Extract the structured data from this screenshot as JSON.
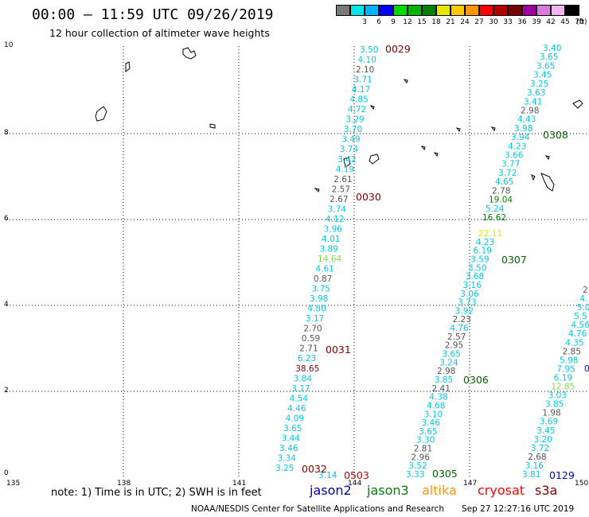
{
  "header": {
    "title": "00:00 – 11:59 UTC 09/26/2019",
    "subtitle": "12 hour collection of altimeter wave heights"
  },
  "legend": {
    "unit": "(ft)",
    "items": [
      {
        "label": "",
        "color": "#787878"
      },
      {
        "label": "3",
        "color": "#00e6e6"
      },
      {
        "label": "6",
        "color": "#00b4ff"
      },
      {
        "label": "9",
        "color": "#0000ff"
      },
      {
        "label": "12",
        "color": "#00dc00"
      },
      {
        "label": "15",
        "color": "#00b400"
      },
      {
        "label": "18",
        "color": "#008200"
      },
      {
        "label": "21",
        "color": "#e6e600"
      },
      {
        "label": "24",
        "color": "#ffc800"
      },
      {
        "label": "27",
        "color": "#ff9600"
      },
      {
        "label": "30",
        "color": "#ff0000"
      },
      {
        "label": "33",
        "color": "#b40000"
      },
      {
        "label": "36",
        "color": "#780000"
      },
      {
        "label": "39",
        "color": "#a000a0"
      },
      {
        "label": "42",
        "color": "#dc78dc"
      },
      {
        "label": "45",
        "color": "#f0b4f0"
      },
      {
        "label": "70",
        "color": "#000000"
      }
    ]
  },
  "map": {
    "y_ticks": [
      "10",
      "8",
      "6",
      "4",
      "2",
      "0"
    ],
    "x_ticks": [
      "135",
      "138",
      "141",
      "144",
      "147",
      "150"
    ],
    "colors": {
      "cyan": "#00c8e6",
      "gray": "#555555",
      "lightgreen": "#7ddc46",
      "green": "#008200",
      "yellow": "#e6e600",
      "red": "#c80000",
      "darkred": "#800000",
      "blue": "#0000c8"
    },
    "time_labels": [
      {
        "text": "0029",
        "color": "#800000"
      },
      {
        "text": "0030",
        "color": "#800000"
      },
      {
        "text": "0031",
        "color": "#800000"
      },
      {
        "text": "0032",
        "color": "#800000"
      },
      {
        "text": "0503",
        "color": "#c80000"
      },
      {
        "text": "0305",
        "color": "#006400"
      },
      {
        "text": "0306",
        "color": "#006400"
      },
      {
        "text": "0307",
        "color": "#006400"
      },
      {
        "text": "0308",
        "color": "#006400"
      },
      {
        "text": "0129",
        "color": "#0000c8"
      }
    ],
    "track1": [
      {
        "v": "3.50",
        "c": "cyan"
      },
      {
        "v": "4.10",
        "c": "cyan"
      },
      {
        "v": "2.10",
        "c": "gray"
      },
      {
        "v": "3.71",
        "c": "cyan"
      },
      {
        "v": "4.17",
        "c": "cyan"
      },
      {
        "v": "4.85",
        "c": "cyan"
      },
      {
        "v": "4.72",
        "c": "cyan"
      },
      {
        "v": "3.29",
        "c": "cyan"
      },
      {
        "v": "3.70",
        "c": "cyan"
      },
      {
        "v": "3.49",
        "c": "cyan"
      },
      {
        "v": "3.74",
        "c": "cyan"
      },
      {
        "v": "3.42",
        "c": "cyan"
      },
      {
        "v": "4.19",
        "c": "cyan"
      },
      {
        "v": "2.61",
        "c": "gray"
      },
      {
        "v": "2.57",
        "c": "gray"
      },
      {
        "v": "2.67",
        "c": "gray"
      },
      {
        "v": "3.74",
        "c": "cyan"
      },
      {
        "v": "4.12",
        "c": "cyan"
      },
      {
        "v": "3.96",
        "c": "cyan"
      },
      {
        "v": "4.01",
        "c": "cyan"
      },
      {
        "v": "3.89",
        "c": "cyan"
      },
      {
        "v": "14.64",
        "c": "lightgreen"
      },
      {
        "v": "4.61",
        "c": "cyan"
      },
      {
        "v": "0.87",
        "c": "gray"
      },
      {
        "v": "3.75",
        "c": "cyan"
      },
      {
        "v": "3.98",
        "c": "cyan"
      },
      {
        "v": "4.80",
        "c": "cyan"
      },
      {
        "v": "3.17",
        "c": "cyan"
      },
      {
        "v": "2.70",
        "c": "gray"
      },
      {
        "v": "0.59",
        "c": "gray"
      },
      {
        "v": "2.71",
        "c": "gray"
      },
      {
        "v": "6.23",
        "c": "cyan"
      },
      {
        "v": "38.65",
        "c": "darkred"
      },
      {
        "v": "3.84",
        "c": "cyan"
      },
      {
        "v": "3.17",
        "c": "cyan"
      },
      {
        "v": "4.54",
        "c": "cyan"
      },
      {
        "v": "4.46",
        "c": "cyan"
      },
      {
        "v": "4.09",
        "c": "cyan"
      },
      {
        "v": "3.65",
        "c": "cyan"
      },
      {
        "v": "3.44",
        "c": "cyan"
      },
      {
        "v": "3.46",
        "c": "cyan"
      },
      {
        "v": "3.34",
        "c": "cyan"
      },
      {
        "v": "3.25",
        "c": "cyan"
      }
    ],
    "track_bottom": [
      {
        "v": "3.14",
        "c": "cyan"
      }
    ],
    "track2": [
      {
        "v": "22.11",
        "c": "yellow"
      },
      {
        "v": "4.23",
        "c": "cyan"
      },
      {
        "v": "6.19",
        "c": "cyan"
      },
      {
        "v": "3.59",
        "c": "cyan"
      },
      {
        "v": "3.50",
        "c": "cyan"
      },
      {
        "v": "3.68",
        "c": "cyan"
      },
      {
        "v": "3.16",
        "c": "cyan"
      },
      {
        "v": "3.06",
        "c": "cyan"
      },
      {
        "v": "3.73",
        "c": "cyan"
      },
      {
        "v": "3.92",
        "c": "cyan"
      },
      {
        "v": "2.23",
        "c": "gray"
      },
      {
        "v": "4.76",
        "c": "cyan"
      },
      {
        "v": "2.57",
        "c": "gray"
      },
      {
        "v": "2.95",
        "c": "gray"
      },
      {
        "v": "3.65",
        "c": "cyan"
      },
      {
        "v": "3.24",
        "c": "cyan"
      },
      {
        "v": "2.98",
        "c": "gray"
      },
      {
        "v": "3.85",
        "c": "cyan"
      },
      {
        "v": "2.41",
        "c": "gray"
      },
      {
        "v": "4.38",
        "c": "cyan"
      },
      {
        "v": "4.68",
        "c": "cyan"
      },
      {
        "v": "3.10",
        "c": "cyan"
      },
      {
        "v": "3.46",
        "c": "cyan"
      },
      {
        "v": "3.65",
        "c": "cyan"
      },
      {
        "v": "3.30",
        "c": "cyan"
      },
      {
        "v": "2.81",
        "c": "gray"
      },
      {
        "v": "2.96",
        "c": "gray"
      },
      {
        "v": "3.52",
        "c": "cyan"
      },
      {
        "v": "3.33",
        "c": "cyan"
      }
    ],
    "track3": [
      {
        "v": "3.40",
        "c": "cyan"
      },
      {
        "v": "3.65",
        "c": "cyan"
      },
      {
        "v": "3.65",
        "c": "cyan"
      },
      {
        "v": "3.45",
        "c": "cyan"
      },
      {
        "v": "3.25",
        "c": "cyan"
      },
      {
        "v": "3.63",
        "c": "cyan"
      },
      {
        "v": "3.41",
        "c": "cyan"
      },
      {
        "v": "2.98",
        "c": "gray"
      },
      {
        "v": "4.43",
        "c": "cyan"
      },
      {
        "v": "3.98",
        "c": "cyan"
      },
      {
        "v": "3.94",
        "c": "cyan"
      },
      {
        "v": "4.23",
        "c": "cyan"
      },
      {
        "v": "3.66",
        "c": "cyan"
      },
      {
        "v": "3.77",
        "c": "cyan"
      },
      {
        "v": "3.72",
        "c": "cyan"
      },
      {
        "v": "4.65",
        "c": "cyan"
      },
      {
        "v": "2.78",
        "c": "gray"
      },
      {
        "v": "19.04",
        "c": "green"
      },
      {
        "v": "5.24",
        "c": "cyan"
      },
      {
        "v": "16.62",
        "c": "green"
      }
    ],
    "track4": [
      {
        "v": "2",
        "c": "gray"
      },
      {
        "v": "4.",
        "c": "cyan"
      },
      {
        "v": "5.0",
        "c": "cyan"
      },
      {
        "v": "5.5",
        "c": "cyan"
      },
      {
        "v": "4.56",
        "c": "cyan"
      },
      {
        "v": "4.76",
        "c": "cyan"
      },
      {
        "v": "4.35",
        "c": "cyan"
      },
      {
        "v": "2.85",
        "c": "gray"
      },
      {
        "v": "5.98",
        "c": "cyan"
      },
      {
        "v": "7.95",
        "c": "cyan"
      },
      {
        "v": "6.19",
        "c": "cyan"
      },
      {
        "v": "12.85",
        "c": "lightgreen"
      },
      {
        "v": "3.03",
        "c": "cyan"
      },
      {
        "v": "3.85",
        "c": "cyan"
      },
      {
        "v": "1.98",
        "c": "gray"
      },
      {
        "v": "3.69",
        "c": "cyan"
      },
      {
        "v": "3.45",
        "c": "cyan"
      },
      {
        "v": "3.20",
        "c": "cyan"
      },
      {
        "v": "3.72",
        "c": "cyan"
      },
      {
        "v": "2.68",
        "c": "gray"
      },
      {
        "v": "3.16",
        "c": "cyan"
      },
      {
        "v": "3.81",
        "c": "cyan"
      }
    ],
    "edge_label": {
      "v": "0",
      "c": "blue"
    }
  },
  "footer": {
    "note": "note:  1) Time is in UTC;  2) SWH is in feet",
    "satellites": [
      {
        "name": "jason2",
        "color": "#0000c8"
      },
      {
        "name": "jason3",
        "color": "#008200"
      },
      {
        "name": "altika",
        "color": "#ff9600"
      },
      {
        "name": "cryosat",
        "color": "#ff0000"
      },
      {
        "name": "s3a",
        "color": "#800000"
      }
    ],
    "credit": "NOAA/NESDIS Center for Satellite Applications and Research",
    "timestamp": "Sep 27 12:27:16 UTC 2019"
  }
}
